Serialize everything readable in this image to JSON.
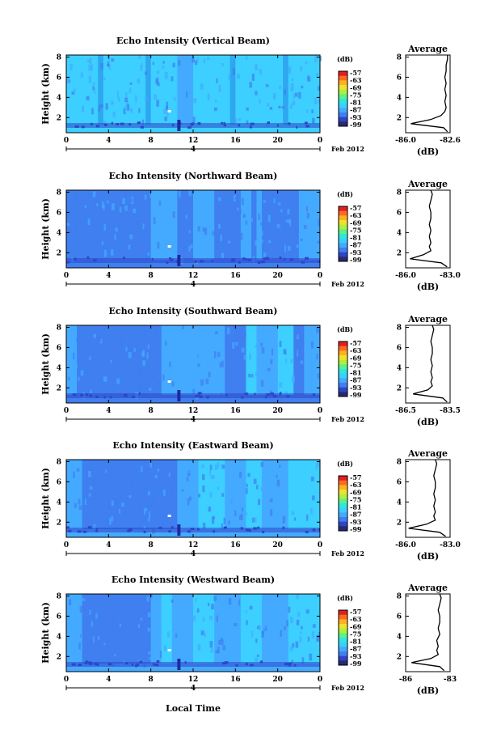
{
  "x_axis": {
    "ticks": [
      "0",
      "4",
      "8",
      "12",
      "16",
      "20",
      "0"
    ],
    "day_marker": "4",
    "month_label": "Feb 2012",
    "title": "Local Time"
  },
  "colorbar": {
    "unit": "(dB)",
    "labels": [
      "-57",
      "-63",
      "-69",
      "-75",
      "-81",
      "-87",
      "-93",
      "-99"
    ],
    "colors": [
      "#2a2a70",
      "#2f45c8",
      "#3f7ff0",
      "#44aaff",
      "#3ccfff",
      "#2ee8e0",
      "#5ef08a",
      "#b0f03c",
      "#f0e030",
      "#ffb020",
      "#ff6a20",
      "#e02020"
    ]
  },
  "chart_data": [
    {
      "type": "heatmap",
      "title": "Echo Intensity (Vertical Beam)",
      "ylabel": "Height (km)",
      "yticks": [
        "2",
        "4",
        "6",
        "8"
      ],
      "ylim": [
        0.5,
        8.2
      ],
      "xlim": [
        0,
        24
      ],
      "base_color": "#3ccfff",
      "bands": [
        [
          3.0,
          3.5,
          "#2fa6f0"
        ],
        [
          7.5,
          8.0,
          "#2fa6f0"
        ],
        [
          10.5,
          12.0,
          "#44aaff"
        ],
        [
          15.5,
          16.0,
          "#2fa6f0"
        ],
        [
          20.5,
          21.0,
          "#2fa6f0"
        ]
      ],
      "profile": {
        "title": "Average",
        "xlabel": "(dB)",
        "xticks": [
          "-86.0",
          "-82.6"
        ],
        "xlim": [
          -86.0,
          -82.6
        ],
        "yticks": [
          "2",
          "4",
          "6",
          "8"
        ],
        "height_km": [
          0.6,
          1.0,
          1.4,
          1.8,
          2.2,
          2.6,
          3.0,
          3.6,
          4.2,
          4.8,
          5.4,
          6.0,
          6.6,
          7.2,
          7.8,
          8.2
        ],
        "values": [
          -82.8,
          -83.1,
          -85.6,
          -84.1,
          -83.3,
          -83.0,
          -82.9,
          -83.0,
          -82.9,
          -83.0,
          -82.9,
          -83.0,
          -82.9,
          -82.9,
          -82.8,
          -82.8
        ]
      }
    },
    {
      "type": "heatmap",
      "title": "Echo Intensity (Northward Beam)",
      "ylabel": "Height (km)",
      "yticks": [
        "2",
        "4",
        "6",
        "8"
      ],
      "ylim": [
        0.5,
        8.2
      ],
      "xlim": [
        0,
        24
      ],
      "base_color": "#3f7ff0",
      "bands": [
        [
          8.0,
          10.5,
          "#44aaff"
        ],
        [
          12.0,
          14.0,
          "#44aaff"
        ],
        [
          16.5,
          17.5,
          "#44aaff"
        ],
        [
          18.0,
          18.5,
          "#44aaff"
        ],
        [
          22.0,
          24.0,
          "#44aaff"
        ]
      ],
      "profile": {
        "title": "Average",
        "xlabel": "(dB)",
        "xticks": [
          "-86.0",
          "-83.0"
        ],
        "xlim": [
          -86.0,
          -83.0
        ],
        "yticks": [
          "2",
          "4",
          "6",
          "8"
        ],
        "height_km": [
          0.6,
          1.0,
          1.4,
          1.8,
          2.2,
          2.6,
          3.0,
          3.6,
          4.2,
          4.8,
          5.4,
          6.0,
          6.6,
          7.2,
          7.8,
          8.2
        ],
        "values": [
          -83.2,
          -83.6,
          -85.7,
          -84.8,
          -84.3,
          -84.4,
          -84.3,
          -84.4,
          -84.3,
          -84.4,
          -84.3,
          -84.3,
          -84.4,
          -84.3,
          -84.2,
          -84.3
        ]
      }
    },
    {
      "type": "heatmap",
      "title": "Echo Intensity (Southward Beam)",
      "ylabel": "Height (km)",
      "yticks": [
        "2",
        "4",
        "6",
        "8"
      ],
      "ylim": [
        0.5,
        8.2
      ],
      "xlim": [
        0,
        24
      ],
      "base_color": "#3f7ff0",
      "bands": [
        [
          0.0,
          1.0,
          "#44aaff"
        ],
        [
          9.0,
          12.0,
          "#44aaff"
        ],
        [
          12.0,
          15.0,
          "#44aaff"
        ],
        [
          17.0,
          18.0,
          "#3ccfff"
        ],
        [
          18.0,
          20.0,
          "#44aaff"
        ],
        [
          20.0,
          21.5,
          "#3ccfff"
        ],
        [
          22.5,
          24.0,
          "#44aaff"
        ]
      ],
      "profile": {
        "title": "Average",
        "xlabel": "(dB)",
        "xticks": [
          "-86.5",
          "-83.5"
        ],
        "xlim": [
          -86.5,
          -83.5
        ],
        "yticks": [
          "2",
          "4",
          "6",
          "8"
        ],
        "height_km": [
          0.6,
          1.0,
          1.4,
          1.8,
          2.2,
          2.6,
          3.0,
          3.6,
          4.2,
          4.8,
          5.4,
          6.0,
          6.6,
          7.2,
          7.8,
          8.2
        ],
        "values": [
          -83.7,
          -84.0,
          -86.0,
          -85.0,
          -84.7,
          -84.8,
          -84.7,
          -84.8,
          -84.7,
          -84.8,
          -84.7,
          -84.7,
          -84.8,
          -84.7,
          -84.6,
          -84.7
        ]
      }
    },
    {
      "type": "heatmap",
      "title": "Echo Intensity (Eastward Beam)",
      "ylabel": "Height (km)",
      "yticks": [
        "2",
        "4",
        "6",
        "8"
      ],
      "ylim": [
        0.5,
        8.2
      ],
      "xlim": [
        0,
        24
      ],
      "base_color": "#44aaff",
      "bands": [
        [
          1.5,
          8.0,
          "#3f7ff0"
        ],
        [
          8.0,
          10.5,
          "#3f7ff0"
        ],
        [
          12.5,
          15.0,
          "#3ccfff"
        ],
        [
          17.0,
          18.5,
          "#3ccfff"
        ],
        [
          21.0,
          24.0,
          "#3ccfff"
        ]
      ],
      "profile": {
        "title": "Average",
        "xlabel": "(dB)",
        "xticks": [
          "-86.0",
          "-83.0"
        ],
        "xlim": [
          -86.0,
          -83.0
        ],
        "yticks": [
          "2",
          "4",
          "6",
          "8"
        ],
        "height_km": [
          0.6,
          1.0,
          1.4,
          1.8,
          2.2,
          2.6,
          3.0,
          3.6,
          4.2,
          4.8,
          5.4,
          6.0,
          6.6,
          7.2,
          7.8,
          8.2
        ],
        "values": [
          -83.3,
          -83.7,
          -85.8,
          -84.6,
          -84.0,
          -84.1,
          -84.0,
          -84.1,
          -84.0,
          -84.1,
          -84.0,
          -84.0,
          -84.1,
          -84.0,
          -83.9,
          -84.0
        ]
      }
    },
    {
      "type": "heatmap",
      "title": "Echo Intensity (Westward Beam)",
      "ylabel": "Height (km)",
      "yticks": [
        "2",
        "4",
        "6",
        "8"
      ],
      "ylim": [
        0.5,
        8.2
      ],
      "xlim": [
        0,
        24
      ],
      "base_color": "#44aaff",
      "bands": [
        [
          1.5,
          8.0,
          "#3f7ff0"
        ],
        [
          9.0,
          10.0,
          "#3ccfff"
        ],
        [
          12.0,
          14.0,
          "#3ccfff"
        ],
        [
          16.5,
          18.5,
          "#3ccfff"
        ],
        [
          21.0,
          24.0,
          "#3ccfff"
        ]
      ],
      "profile": {
        "title": "Average",
        "xlabel": "(dB)",
        "xticks": [
          "-86",
          "-83"
        ],
        "xlim": [
          -86,
          -83
        ],
        "yticks": [
          "2",
          "4",
          "6",
          "8"
        ],
        "height_km": [
          0.6,
          1.0,
          1.4,
          1.8,
          2.2,
          2.6,
          3.0,
          3.6,
          4.2,
          4.8,
          5.4,
          6.0,
          6.6,
          7.2,
          7.8,
          8.2
        ],
        "values": [
          -83.4,
          -83.7,
          -85.6,
          -84.3,
          -83.8,
          -83.9,
          -83.8,
          -83.9,
          -83.7,
          -83.8,
          -83.7,
          -83.7,
          -83.8,
          -83.7,
          -83.6,
          -83.7
        ]
      }
    }
  ]
}
